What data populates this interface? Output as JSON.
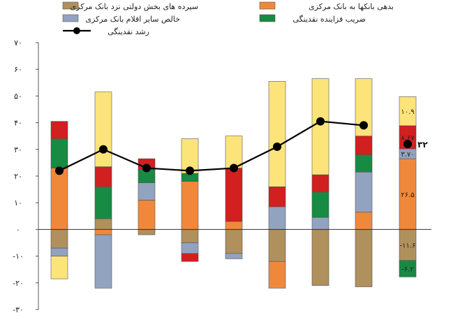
{
  "chart_data": {
    "type": "bar",
    "stacked": true,
    "title": "",
    "xlabel": "",
    "ylabel": "",
    "ylim": [
      -30,
      70
    ],
    "yticks": [
      {
        "value": 70,
        "label": "۷۰"
      },
      {
        "value": 60,
        "label": "۶۰"
      },
      {
        "value": 50,
        "label": "۵۰"
      },
      {
        "value": 40,
        "label": "۴۰"
      },
      {
        "value": 30,
        "label": "۳۰"
      },
      {
        "value": 20,
        "label": "۲۰"
      },
      {
        "value": 10,
        "label": "۱۰"
      },
      {
        "value": 0,
        "label": "۰"
      },
      {
        "value": -10,
        "label": "-۱۰"
      },
      {
        "value": -20,
        "label": "-۲۰"
      },
      {
        "value": -30,
        "label": "-۳۰"
      }
    ],
    "grid": false,
    "legend_position": "top",
    "categories": [
      "",
      "",
      "",
      "",
      "",
      "",
      "",
      "",
      ""
    ],
    "series": [
      {
        "name": "سپرده های بخش دولتی نزد بانک مرکزی",
        "color": "#b0905c",
        "values": [
          -7,
          4,
          -2,
          -5,
          -9,
          -12,
          -21,
          -21.5,
          -11.6
        ]
      },
      {
        "name": "بدهی بانکها به بانک مرکزی",
        "color": "#f0883b",
        "values": [
          23,
          -2,
          11,
          18,
          3,
          -10,
          0,
          6.5,
          26.5
        ]
      },
      {
        "name": "خالص سایر اقلام بانک مرکزی",
        "color": "#92a3c0",
        "values": [
          -3,
          -20,
          6.5,
          -4,
          -2,
          8.5,
          4.5,
          15,
          3.7
        ]
      },
      {
        "name": "ضریب فزاینده نقدینگی",
        "color": "#178a43",
        "values": [
          11,
          12,
          5,
          3,
          0,
          0,
          9.5,
          6.5,
          -6.2
        ]
      },
      {
        "name": "",
        "color": "#d21f1f",
        "values": [
          6.5,
          7.5,
          4,
          -3,
          20,
          7.5,
          6.5,
          7,
          8.67
        ]
      },
      {
        "name": "",
        "color": "#fde47a",
        "values": [
          -8.5,
          28,
          0,
          13,
          12,
          39.5,
          36,
          21.5,
          10.9
        ]
      }
    ],
    "line": {
      "name": "رشد نقدینگی",
      "color": "#000000",
      "values": [
        22,
        30,
        23,
        22,
        23,
        31,
        40.5,
        39,
        null
      ]
    },
    "last_bar_dot": 32,
    "data_labels": [
      {
        "bar": 8,
        "series": 2,
        "text": "۳.۷۰"
      },
      {
        "bar": 8,
        "series": 1,
        "text": "۲۶.۵"
      },
      {
        "bar": 8,
        "series": 4,
        "text": "۸.۶۷"
      },
      {
        "bar": 8,
        "series": 5,
        "text": "۱۰.۹"
      },
      {
        "bar": 8,
        "series": 0,
        "text": "-۱۱.۶"
      },
      {
        "bar": 8,
        "series": 3,
        "text": "-۶.۲"
      }
    ],
    "last_bar_dot_label": "۳۲"
  }
}
